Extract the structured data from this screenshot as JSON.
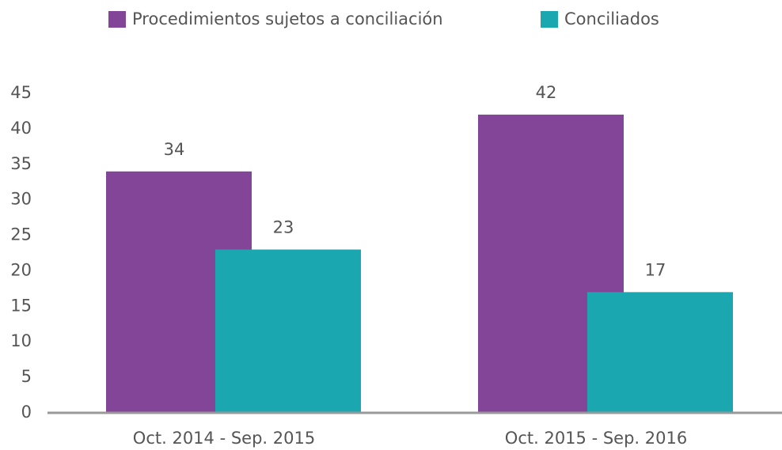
{
  "chart_data": {
    "type": "bar",
    "categories": [
      "Oct. 2014 - Sep. 2015",
      "Oct. 2015 - Sep. 2016"
    ],
    "series": [
      {
        "name": "Procedimientos sujetos a conciliación",
        "color": "#834597",
        "values": [
          34,
          42
        ]
      },
      {
        "name": "Conciliados",
        "color": "#1aa7b0",
        "values": [
          23,
          17
        ]
      }
    ],
    "ylim": [
      0,
      45
    ],
    "yticks": [
      0,
      5,
      10,
      15,
      20,
      25,
      30,
      35,
      40,
      45
    ],
    "grid": false,
    "legend": "top"
  }
}
